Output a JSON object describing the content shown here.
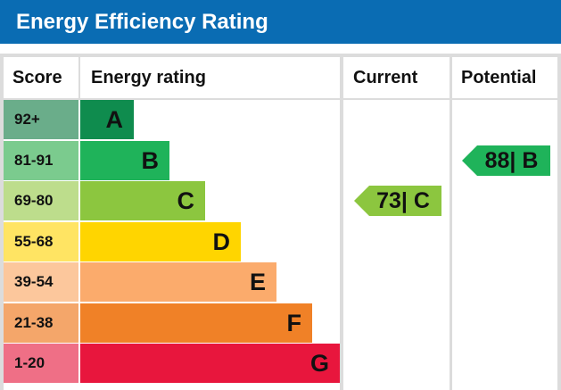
{
  "title": "Energy Efficiency Rating",
  "columns": {
    "score": "Score",
    "rating": "Energy rating",
    "current": "Current",
    "potential": "Potential"
  },
  "bands": [
    {
      "score": "92+",
      "letter": "A",
      "color": "#0f8c4e",
      "score_bg": "#6aad8a"
    },
    {
      "score": "81-91",
      "letter": "B",
      "color": "#1fb35a",
      "score_bg": "#7bcb8e"
    },
    {
      "score": "69-80",
      "letter": "C",
      "color": "#8cc63f",
      "score_bg": "#bddd8c"
    },
    {
      "score": "55-68",
      "letter": "D",
      "color": "#ffd500",
      "score_bg": "#ffe463"
    },
    {
      "score": "39-54",
      "letter": "E",
      "color": "#fbab6c",
      "score_bg": "#fcc79c"
    },
    {
      "score": "21-38",
      "letter": "F",
      "color": "#f08127",
      "score_bg": "#f4a66a"
    },
    {
      "score": "1-20",
      "letter": "G",
      "color": "#e8163d",
      "score_bg": "#ef6f86"
    }
  ],
  "chart_data": {
    "type": "table",
    "title": "Energy Efficiency Rating",
    "current": {
      "value": 73,
      "band": "C",
      "label": "73| C",
      "color": "#8cc63f"
    },
    "potential": {
      "value": 88,
      "band": "B",
      "label": "88| B",
      "color": "#1fb35a"
    }
  }
}
